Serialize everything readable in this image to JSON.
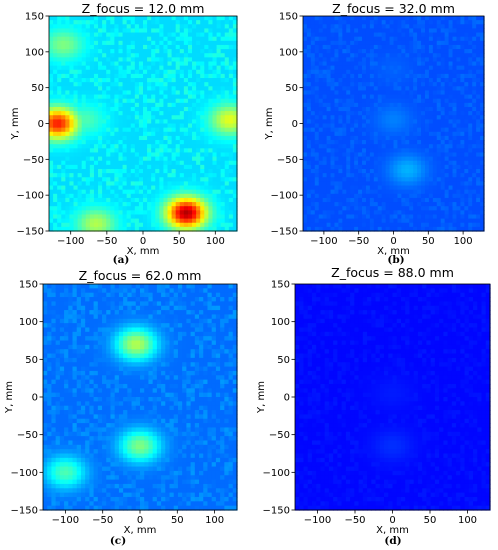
{
  "colors": {
    "background": "#ffffff",
    "colormap": "jet",
    "frame": "#000000"
  },
  "chart_data": [
    {
      "type": "heatmap",
      "panel": "(a)",
      "title": "Z_focus = 12.0 mm",
      "xlabel": "X, mm",
      "ylabel": "Y, mm",
      "xlim": [
        -130,
        130
      ],
      "ylim": [
        -150,
        150
      ],
      "xticks": [
        -100,
        -50,
        0,
        50,
        100
      ],
      "yticks": [
        -150,
        -100,
        -50,
        0,
        50,
        100,
        150
      ],
      "level": "high",
      "features": [
        {
          "x": -80,
          "y": 5,
          "intensity": 0.45
        },
        {
          "x": -110,
          "y": 110,
          "intensity": 0.5
        },
        {
          "x": -118,
          "y": 0,
          "intensity": 0.85
        },
        {
          "x": -30,
          "y": 60,
          "intensity": 0.3
        },
        {
          "x": 40,
          "y": 20,
          "intensity": 0.3
        },
        {
          "x": 60,
          "y": -125,
          "intensity": 0.95
        },
        {
          "x": -65,
          "y": -140,
          "intensity": 0.55
        },
        {
          "x": 120,
          "y": 5,
          "intensity": 0.6
        }
      ]
    },
    {
      "type": "heatmap",
      "panel": "(b)",
      "title": "Z_focus = 32.0 mm",
      "xlabel": "X, mm",
      "ylabel": "Y, mm",
      "xlim": [
        -130,
        130
      ],
      "ylim": [
        -150,
        150
      ],
      "xticks": [
        -100,
        -50,
        0,
        50,
        100
      ],
      "yticks": [
        -150,
        -100,
        -50,
        0,
        50,
        100,
        150
      ],
      "level": "low",
      "features": [
        {
          "x": 0,
          "y": 5,
          "intensity": 0.25
        },
        {
          "x": 20,
          "y": -65,
          "intensity": 0.3
        },
        {
          "x": 0,
          "y": 75,
          "intensity": 0.22
        }
      ]
    },
    {
      "type": "heatmap",
      "panel": "(c)",
      "title": "Z_focus = 62.0 mm",
      "xlabel": "X, mm",
      "ylabel": "Y, mm",
      "xlim": [
        -130,
        130
      ],
      "ylim": [
        -150,
        150
      ],
      "xticks": [
        -100,
        -50,
        0,
        50,
        100
      ],
      "yticks": [
        -150,
        -100,
        -50,
        0,
        50,
        100,
        150
      ],
      "level": "medium",
      "features": [
        {
          "x": -5,
          "y": 70,
          "intensity": 0.55
        },
        {
          "x": 0,
          "y": -65,
          "intensity": 0.5
        },
        {
          "x": -100,
          "y": -100,
          "intensity": 0.45
        },
        {
          "x": -20,
          "y": 5,
          "intensity": 0.22
        }
      ]
    },
    {
      "type": "heatmap",
      "panel": "(d)",
      "title": "Z_focus = 88.0 mm",
      "xlabel": "X, mm",
      "ylabel": "Y, mm",
      "xlim": [
        -130,
        130
      ],
      "ylim": [
        -150,
        150
      ],
      "xticks": [
        -100,
        -50,
        0,
        50,
        100
      ],
      "yticks": [
        -150,
        -100,
        -50,
        0,
        50,
        100,
        150
      ],
      "level": "very-low",
      "features": [
        {
          "x": 0,
          "y": 5,
          "intensity": 0.15
        },
        {
          "x": 0,
          "y": -65,
          "intensity": 0.17
        }
      ]
    }
  ]
}
